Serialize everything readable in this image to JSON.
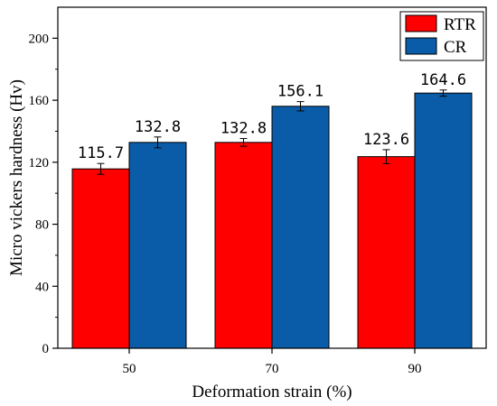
{
  "chart_data": {
    "type": "bar",
    "title": "",
    "xlabel": "Deformation strain (%)",
    "ylabel": "Micro vickers hardness (Hv)",
    "categories": [
      "50",
      "70",
      "90"
    ],
    "ylim": [
      0,
      220
    ],
    "yticks": [
      0,
      40,
      80,
      120,
      160,
      200
    ],
    "grid": false,
    "legend_position": "top-right",
    "series": [
      {
        "name": "RTR",
        "color": "#ff0000",
        "values": [
          115.7,
          132.8,
          123.6
        ],
        "errors": [
          3.5,
          2.5,
          4.5
        ],
        "labels": [
          "115.7",
          "132.8",
          "123.6"
        ]
      },
      {
        "name": "CR",
        "color": "#0a5ca8",
        "values": [
          132.8,
          156.1,
          164.6
        ],
        "errors": [
          3.5,
          3.0,
          2.0
        ],
        "labels": [
          "132.8",
          "156.1",
          "164.6"
        ]
      }
    ]
  }
}
